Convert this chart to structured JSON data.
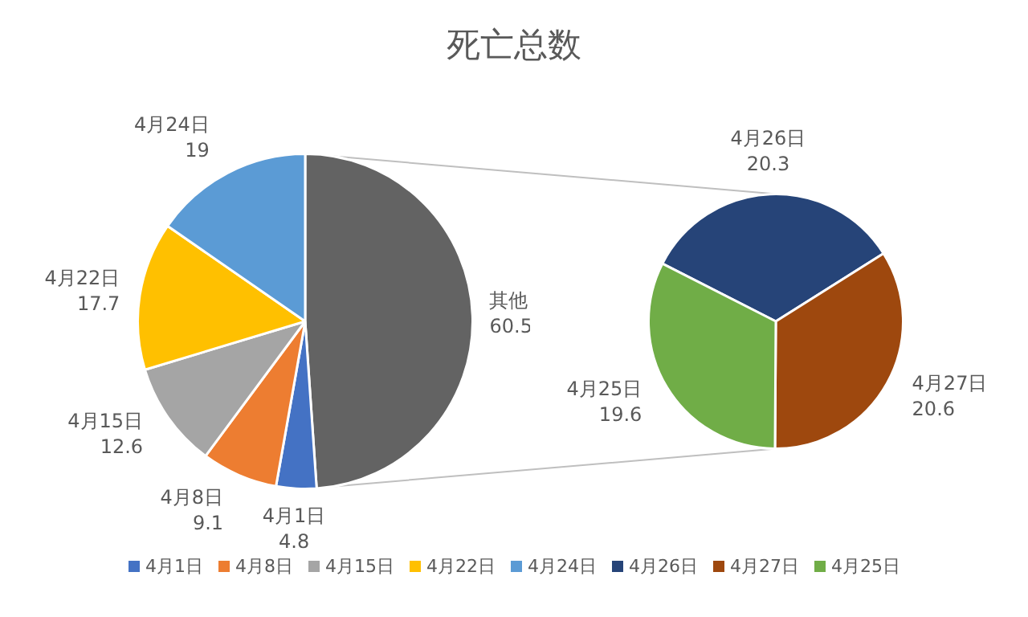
{
  "chart_data": [
    {
      "type": "pie",
      "title": "死亡总数",
      "categories": [
        "其他",
        "4月1日",
        "4月8日",
        "4月15日",
        "4月22日",
        "4月24日"
      ],
      "values": [
        60.5,
        4.8,
        9.1,
        12.6,
        17.7,
        19
      ],
      "colors": [
        "#636363",
        "#4472c4",
        "#ed7d31",
        "#a5a5a5",
        "#ffc000",
        "#5b9bd5"
      ],
      "data_labels": true,
      "legend": "bottom"
    },
    {
      "type": "pie",
      "categories": [
        "4月26日",
        "4月27日",
        "4月25日"
      ],
      "values": [
        20.3,
        20.6,
        19.6
      ],
      "colors": [
        "#264478",
        "#9e480e",
        "#70ad47"
      ],
      "data_labels": true,
      "legend": "bottom"
    }
  ]
}
